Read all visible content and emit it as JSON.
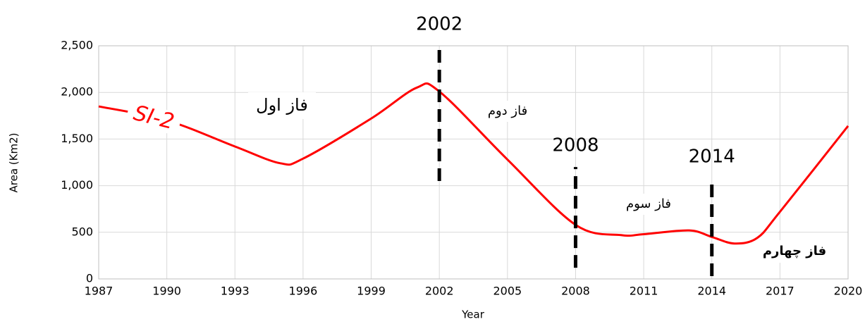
{
  "chart_data": {
    "type": "line",
    "x_label": "Year",
    "y_label": "Area (Km2)",
    "x": [
      1987,
      1990,
      1993,
      1995,
      1996,
      1999,
      2001,
      2002,
      2005,
      2008,
      2010,
      2011,
      2013,
      2014,
      2015,
      2016,
      2017,
      2020
    ],
    "series": [
      {
        "name": "SI-2",
        "color": "#ff0000",
        "values": [
          1850,
          1700,
          1420,
          1240,
          1290,
          1720,
          2050,
          2010,
          1280,
          580,
          470,
          480,
          520,
          450,
          380,
          440,
          720,
          1640
        ]
      }
    ],
    "xlim": [
      1987,
      2020
    ],
    "xticks": [
      1987,
      1990,
      1993,
      1996,
      1999,
      2002,
      2005,
      2008,
      2011,
      2014,
      2017,
      2020
    ],
    "ylim": [
      0,
      2500
    ],
    "yticks": [
      0,
      500,
      {
        "value": 1000,
        "label": "1,000"
      },
      {
        "value": 1500,
        "label": "1,500"
      },
      {
        "value": 2000,
        "label": "2,000"
      },
      {
        "value": 2500,
        "label": "2,500"
      }
    ],
    "grid": true,
    "markers": [
      {
        "x": 2002,
        "label": "2002",
        "ymin": 1050,
        "ymax": 2500
      },
      {
        "x": 2008,
        "label": "2008",
        "ymin": 120,
        "ymax": 1200
      },
      {
        "x": 2014,
        "label": "2014",
        "ymin": 30,
        "ymax": 1080
      }
    ],
    "annotations": [
      "فاز اول",
      "فاز دوم",
      "فاز سوم",
      "فاز چهارم"
    ]
  }
}
